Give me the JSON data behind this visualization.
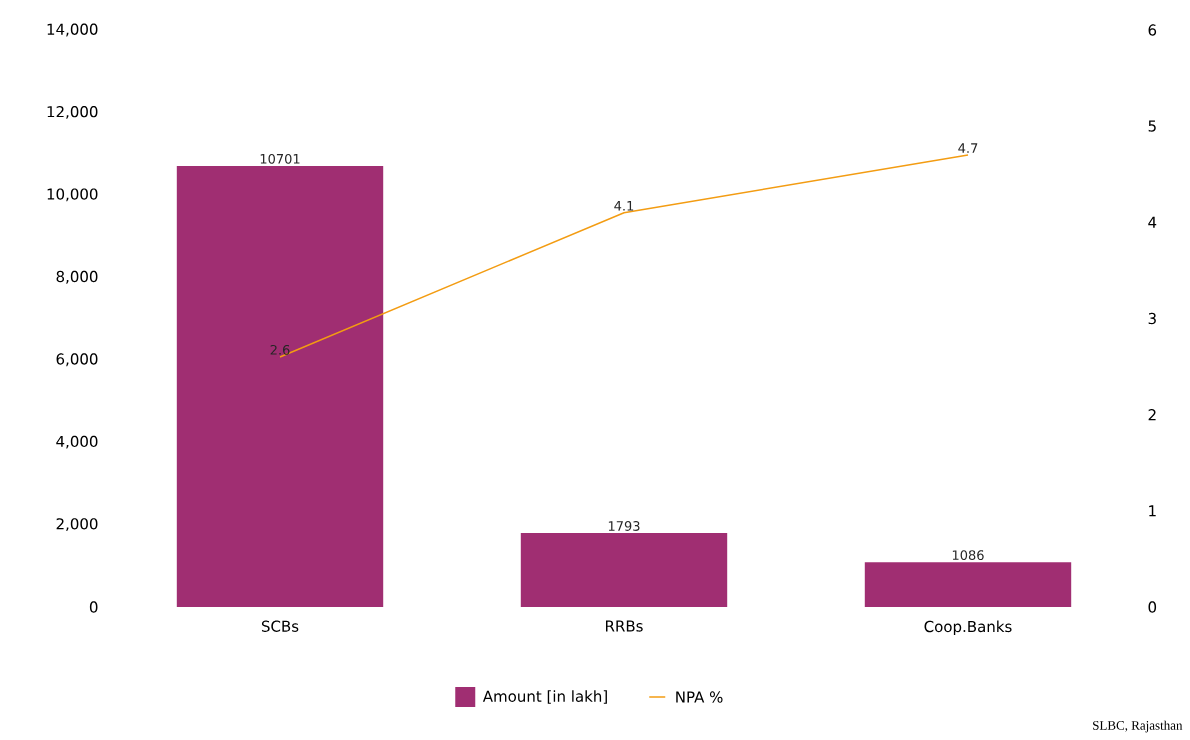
{
  "chart_data": {
    "type": "bar",
    "categories": [
      "SCBs",
      "RRBs",
      "Coop.Banks"
    ],
    "series": [
      {
        "name": "Amount [in lakh]",
        "color": "#a02e72",
        "values": [
          10701,
          1793,
          1086
        ]
      },
      {
        "name": "NPA %",
        "type": "line",
        "axis": "y2",
        "color": "#f39c12",
        "values": [
          2.6,
          4.1,
          4.7
        ]
      }
    ],
    "ylim": [
      0,
      14000
    ],
    "yticks": [
      0,
      {
        "value": 2000,
        "label": "2,000"
      },
      {
        "value": 4000,
        "label": "4,000"
      },
      {
        "value": 6000,
        "label": "6,000"
      },
      {
        "value": 8000,
        "label": "8,000"
      },
      {
        "value": 10000,
        "label": "10,000"
      },
      {
        "value": 12000,
        "label": "12,000"
      },
      {
        "value": 14000,
        "label": "14,000"
      }
    ],
    "y2lim": [
      0,
      6
    ],
    "y2ticks": [
      0,
      1,
      2,
      3,
      4,
      5,
      6
    ],
    "data_labels": true,
    "legend": "bottom",
    "grid": false,
    "marker": "none",
    "annotations": [
      "SLBC, Rajasthan"
    ]
  }
}
